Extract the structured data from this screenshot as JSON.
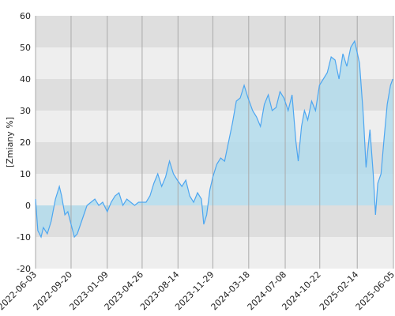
{
  "chart_data": {
    "type": "area",
    "y_label": "[Zmiany %]",
    "color": "#4da6f0",
    "fill": "#b3dcec",
    "x": [
      "2022-06-03",
      "2022-06-10",
      "2022-06-20",
      "2022-06-27",
      "2022-07-09",
      "2022-07-21",
      "2022-08-03",
      "2022-08-15",
      "2022-08-22",
      "2022-09-01",
      "2022-09-10",
      "2022-09-20",
      "2022-09-30",
      "2022-10-09",
      "2022-10-19",
      "2022-10-29",
      "2022-11-08",
      "2022-11-20",
      "2022-12-02",
      "2022-12-14",
      "2022-12-26",
      "2023-01-09",
      "2023-01-21",
      "2023-02-02",
      "2023-02-14",
      "2023-02-26",
      "2023-03-10",
      "2023-03-22",
      "2023-04-03",
      "2023-04-15",
      "2023-05-08",
      "2023-05-20",
      "2023-06-01",
      "2023-06-13",
      "2023-06-25",
      "2023-07-07",
      "2023-07-19",
      "2023-07-31",
      "2023-08-12",
      "2023-08-26",
      "2023-09-07",
      "2023-09-19",
      "2023-10-01",
      "2023-10-13",
      "2023-10-25",
      "2023-11-01",
      "2023-11-10",
      "2023-11-20",
      "2023-11-29",
      "2023-12-11",
      "2023-12-23",
      "2024-01-04",
      "2024-01-16",
      "2024-01-28",
      "2024-02-09",
      "2024-02-21",
      "2024-03-04",
      "2024-03-16",
      "2024-03-30",
      "2024-04-11",
      "2024-04-23",
      "2024-05-05",
      "2024-05-17",
      "2024-05-29",
      "2024-06-10",
      "2024-06-22",
      "2024-07-04",
      "2024-07-17",
      "2024-07-29",
      "2024-08-10",
      "2024-08-17",
      "2024-08-27",
      "2024-09-05",
      "2024-09-15",
      "2024-09-27",
      "2024-10-09",
      "2024-10-21",
      "2024-11-02",
      "2024-11-14",
      "2024-11-26",
      "2024-12-08",
      "2024-12-20",
      "2025-01-01",
      "2025-01-13",
      "2025-01-25",
      "2025-02-06",
      "2025-02-21",
      "2025-03-05",
      "2025-03-13",
      "2025-03-25",
      "2025-04-04",
      "2025-04-11",
      "2025-04-18",
      "2025-04-28",
      "2025-05-08",
      "2025-05-17",
      "2025-05-27",
      "2025-06-03"
    ],
    "values": [
      2,
      -8,
      -10,
      -7,
      -9,
      -5,
      2,
      6,
      3,
      -3,
      -2,
      -6,
      -10,
      -9,
      -6,
      -3,
      0,
      1,
      2,
      0,
      1,
      -2,
      1,
      3,
      4,
      0,
      2,
      1,
      0,
      1,
      1,
      3,
      7,
      10,
      6,
      9,
      14,
      10,
      8,
      6,
      8,
      3,
      1,
      4,
      2,
      -6,
      -3,
      5,
      9,
      13,
      15,
      14,
      20,
      26,
      33,
      34,
      38,
      34,
      30,
      28,
      25,
      32,
      35,
      30,
      31,
      36,
      34,
      30,
      35,
      20,
      14,
      25,
      30,
      27,
      33,
      30,
      38,
      40,
      42,
      47,
      46,
      40,
      48,
      44,
      50,
      52,
      45,
      28,
      12,
      24,
      10,
      -3,
      7,
      10,
      22,
      32,
      38,
      40
    ],
    "xlim": [
      "2022-06-03",
      "2025-06-05"
    ],
    "xticks": [
      "2022-06-03",
      "2022-09-20",
      "2023-01-09",
      "2023-04-26",
      "2023-08-14",
      "2023-11-29",
      "2024-03-18",
      "2024-07-08",
      "2024-10-22",
      "2025-02-14",
      "2025-06-05"
    ],
    "ylim": [
      -20,
      60
    ],
    "yticks": [
      -20,
      -10,
      0,
      10,
      20,
      30,
      40,
      50,
      60
    ],
    "grid": true
  }
}
